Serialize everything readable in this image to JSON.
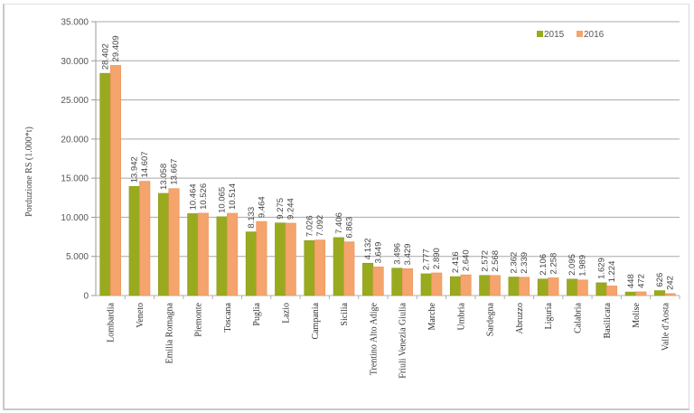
{
  "chart_data": {
    "type": "bar",
    "title": "",
    "xlabel": "",
    "ylabel": "Porduzione RS (1.000*t)",
    "ylim": [
      0,
      35000
    ],
    "yticks": [
      "0",
      "5.000",
      "10.000",
      "15.000",
      "20.000",
      "25.000",
      "30.000",
      "35.000"
    ],
    "grid": "horizontal",
    "legend_position": "top-right",
    "categories": [
      "Lombardia",
      "Veneto",
      "Emilia Romagna",
      "Piemonte",
      "Toscana",
      "Puglia",
      "Lazio",
      "Campania",
      "Sicilia",
      "Trentino Alto Adige",
      "Friuli Venezia Giulia",
      "Marche",
      "Umbria",
      "Sardegna",
      "Abruzzo",
      "Liguria",
      "Calabria",
      "Basilicata",
      "Molise",
      "Valle d'Aosta"
    ],
    "series": [
      {
        "name": "2015",
        "color": "#9aaa1f",
        "values": [
          28402,
          13942,
          13058,
          10464,
          10065,
          8133,
          9275,
          7026,
          7406,
          4132,
          3496,
          2777,
          2416,
          2572,
          2362,
          2106,
          2095,
          1629,
          448,
          626
        ],
        "labels": [
          "28.402",
          "13.942",
          "13.058",
          "10.464",
          "10.065",
          "8.133",
          "9.275",
          "7.026",
          "7.406",
          "4.132",
          "3.496",
          "2.777",
          "2.416",
          "2.572",
          "2.362",
          "2.106",
          "2.095",
          "1.629",
          "448",
          "626"
        ]
      },
      {
        "name": "2016",
        "color": "#f4a46c",
        "values": [
          29409,
          14607,
          13667,
          10526,
          10514,
          9464,
          9244,
          7092,
          6863,
          3649,
          3429,
          2890,
          2640,
          2568,
          2339,
          2258,
          1989,
          1224,
          472,
          242
        ],
        "labels": [
          "29.409",
          "14.607",
          "13.667",
          "10.526",
          "10.514",
          "9.464",
          "9.244",
          "7.092",
          "6.863",
          "3.649",
          "3.429",
          "2.890",
          "2.640",
          "2.568",
          "2.339",
          "2.258",
          "1.989",
          "1.224",
          "472",
          "242"
        ]
      }
    ]
  }
}
